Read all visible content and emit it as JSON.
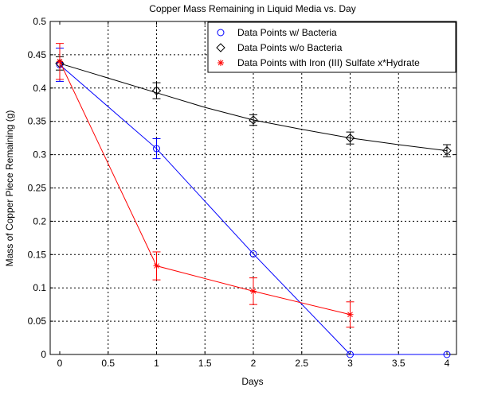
{
  "chart_data": {
    "type": "line",
    "title": "Copper Mass Remaining in Liquid Media vs. Day",
    "xlabel": "Days",
    "ylabel": "Mass of Copper Piece Remaining (g)",
    "xlim": [
      0,
      4
    ],
    "ylim": [
      0,
      0.5
    ],
    "xticks": [
      0,
      0.5,
      1,
      1.5,
      2,
      2.5,
      3,
      3.5,
      4
    ],
    "yticks": [
      0,
      0.05,
      0.1,
      0.15,
      0.2,
      0.25,
      0.3,
      0.35,
      0.4,
      0.45,
      0.5
    ],
    "xtick_labels": [
      "0",
      "0.5",
      "1",
      "1.5",
      "2",
      "2.5",
      "3",
      "3.5",
      "4"
    ],
    "ytick_labels": [
      "0",
      "0.05",
      "0.1",
      "0.15",
      "0.2",
      "0.25",
      "0.3",
      "0.35",
      "0.4",
      "0.45",
      "0.5"
    ],
    "grid": true,
    "legend_position": "top-right",
    "series": [
      {
        "name": "Data Points w/ Bacteria",
        "color": "#0000ff",
        "marker": "circle",
        "x": [
          0,
          1,
          2,
          3,
          4
        ],
        "y": [
          0.435,
          0.309,
          0.151,
          0.0,
          0.0
        ],
        "error": [
          0.025,
          0.015,
          0.0,
          0.0,
          0.0
        ]
      },
      {
        "name": "Data Points w/o Bacteria",
        "color": "#000000",
        "marker": "diamond",
        "x": [
          0,
          1,
          2,
          3,
          4
        ],
        "y": [
          0.437,
          0.396,
          0.352,
          0.325,
          0.306
        ],
        "error": [
          0.01,
          0.012,
          0.008,
          0.009,
          0.009
        ],
        "curve_x": [
          0,
          0.5,
          1,
          1.5,
          2,
          2.5,
          3,
          3.5,
          4
        ],
        "curve_y": [
          0.437,
          0.415,
          0.393,
          0.371,
          0.352,
          0.338,
          0.325,
          0.315,
          0.306
        ]
      },
      {
        "name": "Data Points with Iron (III) Sulfate x*Hydrate",
        "color": "#ff0000",
        "marker": "star",
        "x": [
          0,
          1,
          2,
          3
        ],
        "y": [
          0.44,
          0.133,
          0.095,
          0.06
        ],
        "error": [
          0.027,
          0.021,
          0.02,
          0.019
        ]
      }
    ]
  }
}
